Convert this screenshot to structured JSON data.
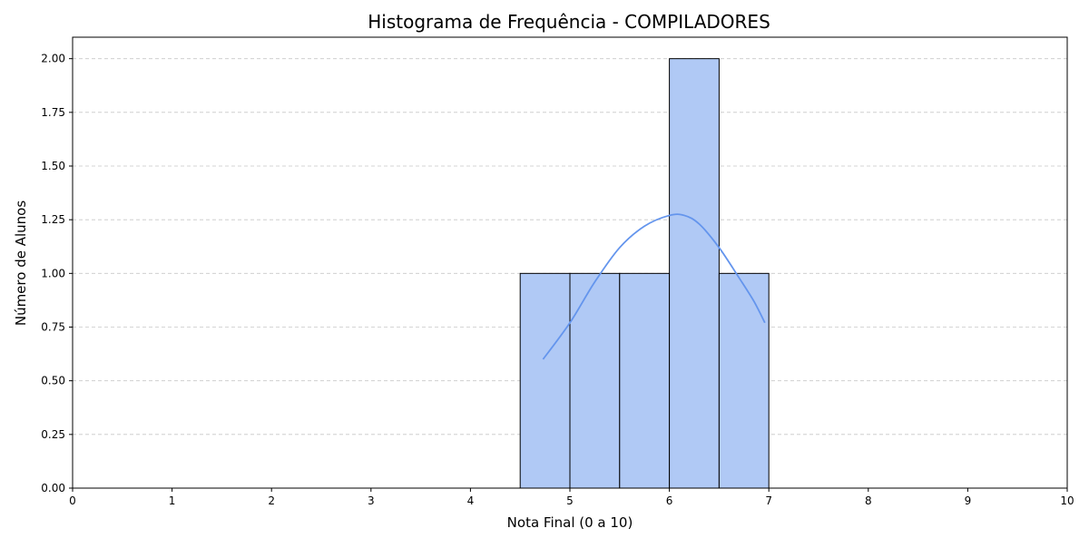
{
  "chart_data": {
    "type": "bar",
    "title": "Histograma de Frequência - COMPILADORES",
    "xlabel": "Nota Final (0 a 10)",
    "ylabel": "Número de Alunos",
    "xlim": [
      0,
      10
    ],
    "ylim": [
      0,
      2.1
    ],
    "x_ticks": [
      "0",
      "1",
      "2",
      "3",
      "4",
      "5",
      "6",
      "7",
      "8",
      "9",
      "10"
    ],
    "y_ticks": [
      "0.00",
      "0.25",
      "0.50",
      "0.75",
      "1.00",
      "1.25",
      "1.50",
      "1.75",
      "2.00"
    ],
    "bins": [
      {
        "start": 4.5,
        "end": 5.0,
        "count": 1
      },
      {
        "start": 5.0,
        "end": 5.5,
        "count": 1
      },
      {
        "start": 5.5,
        "end": 6.0,
        "count": 1
      },
      {
        "start": 6.0,
        "end": 6.5,
        "count": 2
      },
      {
        "start": 6.5,
        "end": 7.0,
        "count": 1
      }
    ],
    "kde_curve": [
      [
        4.73,
        0.6
      ],
      [
        5.0,
        0.77
      ],
      [
        5.25,
        0.96
      ],
      [
        5.5,
        1.12
      ],
      [
        5.75,
        1.22
      ],
      [
        6.0,
        1.27
      ],
      [
        6.15,
        1.27
      ],
      [
        6.3,
        1.23
      ],
      [
        6.5,
        1.12
      ],
      [
        6.7,
        0.98
      ],
      [
        6.85,
        0.87
      ],
      [
        6.96,
        0.77
      ]
    ],
    "grid": "horizontal-dashed",
    "colors": {
      "bar_fill": "#b0c9f5",
      "bar_edge": "#000000",
      "kde_line": "#6495ed",
      "grid": "#c8c8c8"
    }
  }
}
